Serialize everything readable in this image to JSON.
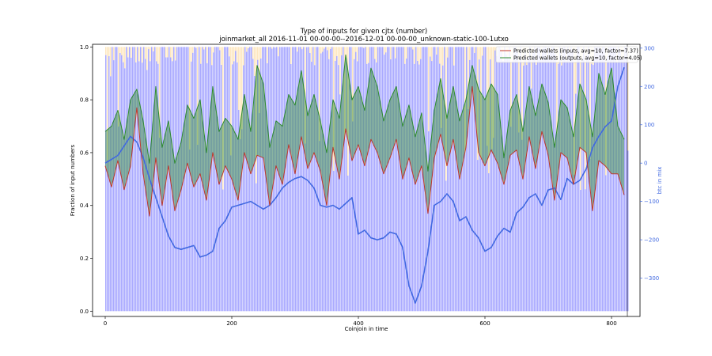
{
  "chart_data": {
    "type": "line",
    "title": "Type of inputs for given cjtx (number)",
    "subtitle": "joinmarket_all 2016-11-01 00-00-00--2016-12-01 00-00-00_unknown-static-100-1utxo",
    "xlabel": "Coinjoin in time",
    "ylabel": "Fraction of input numbers",
    "y2label": "btc in mix",
    "xlim": [
      -20,
      845
    ],
    "ylim": [
      -0.02,
      1.01
    ],
    "y2lim": [
      -400,
      310
    ],
    "x_ticks": [
      0,
      200,
      400,
      600,
      800
    ],
    "y_ticks": [
      0.0,
      0.2,
      0.4,
      0.6,
      0.8,
      1.0
    ],
    "y2_ticks": [
      -300,
      -200,
      -100,
      0,
      100,
      200,
      300
    ],
    "legend": {
      "position": "top-right",
      "entries": [
        "Predicted wallets (inputs, avg=10, factor=7.37)",
        "Predicted wallets (outputs, avg=10, factor=4.05)"
      ]
    },
    "colors": {
      "inputs": "#c0392b",
      "outputs": "#2e8b2e",
      "btc": "#4169e1",
      "bars_fresh": "#aaaaff",
      "bars_remix": "#fde7c0",
      "fill": "#2e8b2e"
    },
    "grid": false,
    "series": [
      {
        "name": "Predicted wallets (inputs, avg=10, factor=7.37)",
        "x": [
          0,
          10,
          20,
          30,
          40,
          50,
          60,
          70,
          80,
          90,
          100,
          110,
          120,
          130,
          140,
          150,
          160,
          170,
          180,
          190,
          200,
          210,
          220,
          230,
          240,
          250,
          260,
          270,
          280,
          290,
          300,
          310,
          320,
          330,
          340,
          350,
          360,
          370,
          380,
          390,
          400,
          410,
          420,
          430,
          440,
          450,
          460,
          470,
          480,
          490,
          500,
          510,
          520,
          530,
          540,
          550,
          560,
          570,
          580,
          590,
          600,
          610,
          620,
          630,
          640,
          650,
          660,
          670,
          680,
          690,
          700,
          710,
          720,
          730,
          740,
          750,
          760,
          770,
          780,
          790,
          800,
          810,
          820
        ],
        "values": [
          0.55,
          0.47,
          0.57,
          0.46,
          0.55,
          0.77,
          0.52,
          0.36,
          0.58,
          0.4,
          0.55,
          0.38,
          0.46,
          0.56,
          0.47,
          0.52,
          0.42,
          0.6,
          0.48,
          0.55,
          0.5,
          0.42,
          0.6,
          0.52,
          0.59,
          0.58,
          0.4,
          0.55,
          0.48,
          0.63,
          0.52,
          0.66,
          0.54,
          0.6,
          0.53,
          0.4,
          0.62,
          0.5,
          0.69,
          0.57,
          0.63,
          0.55,
          0.65,
          0.6,
          0.52,
          0.58,
          0.65,
          0.5,
          0.58,
          0.48,
          0.55,
          0.37,
          0.58,
          0.67,
          0.55,
          0.65,
          0.5,
          0.62,
          0.85,
          0.6,
          0.55,
          0.61,
          0.56,
          0.48,
          0.59,
          0.61,
          0.5,
          0.66,
          0.54,
          0.68,
          0.59,
          0.42,
          0.6,
          0.58,
          0.48,
          0.62,
          0.6,
          0.38,
          0.57,
          0.55,
          0.52,
          0.52,
          0.44
        ]
      },
      {
        "name": "Predicted wallets (outputs, avg=10, factor=4.05)",
        "x": [
          0,
          10,
          20,
          30,
          40,
          50,
          60,
          70,
          80,
          90,
          100,
          110,
          120,
          130,
          140,
          150,
          160,
          170,
          180,
          190,
          200,
          210,
          220,
          230,
          240,
          250,
          260,
          270,
          280,
          290,
          300,
          310,
          320,
          330,
          340,
          350,
          360,
          370,
          380,
          390,
          400,
          410,
          420,
          430,
          440,
          450,
          460,
          470,
          480,
          490,
          500,
          510,
          520,
          530,
          540,
          550,
          560,
          570,
          580,
          590,
          600,
          610,
          620,
          630,
          640,
          650,
          660,
          670,
          680,
          690,
          700,
          710,
          720,
          730,
          740,
          750,
          760,
          770,
          780,
          790,
          800,
          810,
          820
        ],
        "values": [
          0.68,
          0.7,
          0.76,
          0.65,
          0.8,
          0.84,
          0.72,
          0.56,
          0.85,
          0.62,
          0.72,
          0.56,
          0.64,
          0.78,
          0.73,
          0.8,
          0.6,
          0.85,
          0.68,
          0.73,
          0.7,
          0.65,
          0.82,
          0.68,
          0.93,
          0.86,
          0.62,
          0.72,
          0.7,
          0.82,
          0.78,
          0.91,
          0.74,
          0.82,
          0.72,
          0.6,
          0.8,
          0.73,
          0.97,
          0.8,
          0.85,
          0.76,
          0.92,
          0.85,
          0.72,
          0.8,
          0.85,
          0.7,
          0.78,
          0.66,
          0.75,
          0.53,
          0.76,
          0.88,
          0.73,
          0.85,
          0.72,
          0.8,
          0.93,
          0.84,
          0.8,
          0.86,
          0.82,
          0.58,
          0.76,
          0.82,
          0.68,
          0.85,
          0.74,
          0.86,
          0.79,
          0.62,
          0.8,
          0.77,
          0.66,
          0.86,
          0.8,
          0.66,
          0.9,
          0.82,
          0.92,
          0.7,
          0.65
        ]
      },
      {
        "axis": "right",
        "x": [
          0,
          10,
          20,
          30,
          40,
          50,
          60,
          70,
          80,
          90,
          100,
          110,
          120,
          130,
          140,
          150,
          160,
          170,
          180,
          190,
          200,
          210,
          220,
          230,
          240,
          250,
          260,
          270,
          280,
          290,
          300,
          310,
          320,
          330,
          340,
          350,
          360,
          370,
          380,
          390,
          400,
          410,
          420,
          430,
          440,
          450,
          460,
          470,
          480,
          490,
          500,
          510,
          520,
          530,
          540,
          550,
          560,
          570,
          580,
          590,
          600,
          610,
          620,
          630,
          640,
          650,
          660,
          670,
          680,
          690,
          700,
          710,
          720,
          730,
          740,
          750,
          760,
          770,
          780,
          790,
          800,
          810,
          820
        ],
        "values": [
          0,
          10,
          20,
          45,
          70,
          55,
          15,
          -40,
          -90,
          -140,
          -190,
          -220,
          -225,
          -220,
          -215,
          -245,
          -240,
          -230,
          -170,
          -150,
          -115,
          -110,
          -105,
          -100,
          -110,
          -120,
          -110,
          -90,
          -65,
          -50,
          -40,
          -35,
          -45,
          -65,
          -110,
          -115,
          -110,
          -120,
          -105,
          -90,
          -185,
          -175,
          -195,
          -200,
          -195,
          -180,
          -185,
          -220,
          -320,
          -365,
          -320,
          -230,
          -110,
          -100,
          -80,
          -100,
          -150,
          -140,
          -175,
          -195,
          -230,
          -220,
          -190,
          -170,
          -180,
          -130,
          -115,
          -90,
          -80,
          -110,
          -70,
          -65,
          -95,
          -40,
          -55,
          -45,
          -15,
          40,
          70,
          95,
          110,
          200,
          250
        ]
      }
    ]
  }
}
